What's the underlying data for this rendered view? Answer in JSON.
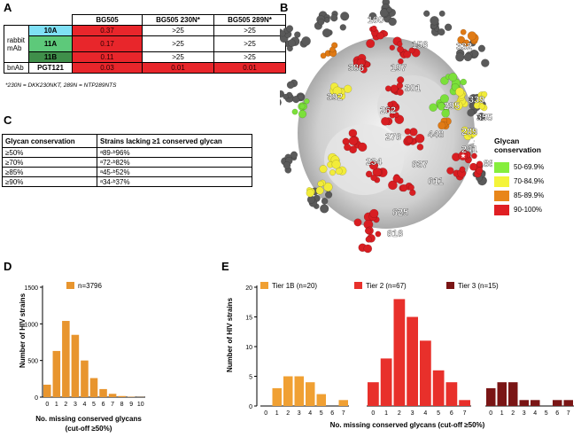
{
  "panels": {
    "a": "A",
    "b": "B",
    "c": "C",
    "d": "D",
    "e": "E"
  },
  "tableA": {
    "headers": [
      "BG505",
      "BG505 230N*",
      "BG505 289N*"
    ],
    "group_rabbit_line1": "rabbit",
    "group_rabbit_line2": "mAb",
    "group_bnab": "bnAb",
    "rows": [
      {
        "name": "10A",
        "color": "#7fe0f5",
        "values": [
          "0.37",
          ">25",
          ">25"
        ]
      },
      {
        "name": "11A",
        "color": "#5dc97a",
        "values": [
          "0.17",
          ">25",
          ">25"
        ]
      },
      {
        "name": "11B",
        "color": "#3f8f4a",
        "values": [
          "0.11",
          ">25",
          ">25"
        ]
      },
      {
        "name": "PGT121",
        "color": "#ffffff",
        "values": [
          "0.03",
          "0.01",
          "0.01"
        ]
      }
    ],
    "footnote": "*230N = DKK230NKT, 289N = NTP289NTS"
  },
  "tableC": {
    "header1": "Glycan conservation",
    "header2": "Strains lacking ≥1 conserved glycan",
    "rows": [
      [
        "≥50%",
        "ᵃ89-ᵇ96%"
      ],
      [
        "≥70%",
        "ᵃ72-ᵇ82%"
      ],
      [
        "≥85%",
        "ᵃ45-ᵇ52%"
      ],
      [
        "≥90%",
        "ᵃ34-ᵇ37%"
      ]
    ]
  },
  "structure": {
    "labels": [
      "160",
      "156",
      "386",
      "197",
      "332",
      "392",
      "301",
      "295",
      "339",
      "262",
      "355",
      "448",
      "289",
      "276",
      "241",
      "234",
      "637",
      "88",
      "611",
      "625",
      "616"
    ],
    "star": "*"
  },
  "glycan_legend": {
    "title_line1": "Glycan",
    "title_line2": "conservation",
    "items": [
      {
        "label": "50-69.9%",
        "color": "#86ee3c"
      },
      {
        "label": "70-84.9%",
        "color": "#f4f43a"
      },
      {
        "label": "85-89.9%",
        "color": "#e8861a"
      },
      {
        "label": "90-100%",
        "color": "#e01f23"
      }
    ]
  },
  "chart_data": [
    {
      "type": "bar",
      "panel": "D",
      "ylabel": "Number of HIV strains",
      "xlabel_line1": "No. missing conserved glycans",
      "xlabel_line2": "(cut-off ≥50%)",
      "ylim": [
        0,
        1500
      ],
      "yticks": [
        0,
        500,
        1000,
        1500
      ],
      "categories": [
        "0",
        "1",
        "2",
        "3",
        "4",
        "5",
        "6",
        "7",
        "8",
        "9",
        "10"
      ],
      "series": [
        {
          "name": "n=3796",
          "color": "#e8952e",
          "values": [
            170,
            630,
            1040,
            850,
            500,
            260,
            110,
            45,
            15,
            5,
            2
          ]
        }
      ]
    },
    {
      "type": "bar",
      "panel": "E",
      "ylabel": "Number of HIV strains",
      "xlabel": "No. missing conserved glycans (cut-off ≥50%)",
      "ylim": [
        0,
        20
      ],
      "yticks": [
        0,
        5,
        10,
        15,
        20
      ],
      "series": [
        {
          "name": "Tier 1B (n=20)",
          "color": "#f0a033",
          "categories": [
            "0",
            "1",
            "2",
            "3",
            "4",
            "5",
            "6",
            "7"
          ],
          "values": [
            0,
            3,
            5,
            5,
            4,
            2,
            0,
            1
          ]
        },
        {
          "name": "Tier 2 (n=67)",
          "color": "#e8302b",
          "categories": [
            "0",
            "1",
            "2",
            "3",
            "4",
            "5",
            "6",
            "7"
          ],
          "values": [
            4,
            8,
            18,
            15,
            11,
            6,
            4,
            1
          ]
        },
        {
          "name": "Tier 3 (n=15)",
          "color": "#7a1515",
          "categories": [
            "0",
            "1",
            "2",
            "3",
            "4",
            "5",
            "6",
            "7"
          ],
          "values": [
            3,
            4,
            4,
            1,
            1,
            0,
            1,
            1
          ]
        }
      ]
    }
  ]
}
